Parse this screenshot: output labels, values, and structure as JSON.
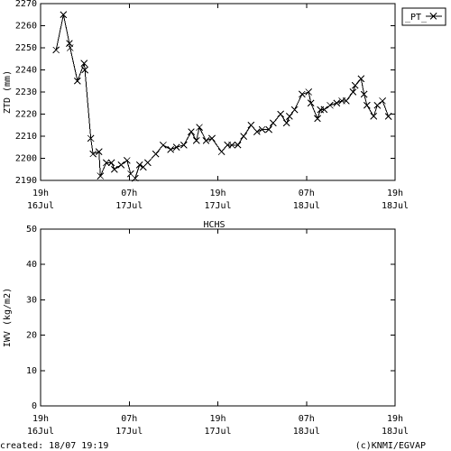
{
  "chart_data": [
    {
      "type": "line",
      "y_label": "ZTD (mm)",
      "x": [
        2.1,
        3.1,
        3.9,
        4.0,
        5.0,
        5.9,
        6.0,
        6.8,
        7.1,
        7.9,
        8.1,
        8.9,
        9.6,
        10.0,
        10.9,
        11.7,
        12.2,
        12.8,
        13.4,
        13.9,
        14.5,
        15.6,
        16.6,
        17.6,
        18.4,
        19.4,
        20.4,
        21.1,
        21.5,
        22.4,
        23.2,
        24.5,
        25.3,
        25.9,
        26.7,
        27.5,
        28.5,
        29.3,
        30.0,
        30.9,
        31.5,
        32.5,
        33.3,
        33.7,
        34.4,
        35.4,
        36.3,
        36.6,
        37.5,
        37.9,
        38.4,
        39.2,
        40.1,
        40.8,
        41.4,
        42.3,
        42.6,
        43.4,
        43.8,
        44.2,
        45.1,
        45.6,
        46.3,
        47.1
      ],
      "series": [
        {
          "name": "_PT_",
          "color": "#000000",
          "values": [
            2249,
            2265,
            2252,
            2250,
            2235,
            2243,
            2240,
            2209,
            2202,
            2203,
            2192,
            2198,
            2198,
            2195,
            2197,
            2199,
            2193,
            2191,
            2197,
            2196,
            2198,
            2202,
            2206,
            2204,
            2205,
            2206,
            2212,
            2208,
            2214,
            2208,
            2209,
            2203,
            2206,
            2206,
            2206,
            2210,
            2215,
            2212,
            2213,
            2213,
            2216,
            2220,
            2216,
            2219,
            2222,
            2229,
            2230,
            2225,
            2218,
            2222,
            2222,
            2224,
            2225,
            2226,
            2226,
            2230,
            2233,
            2236,
            2229,
            2224,
            2219,
            2224,
            2226,
            2219
          ]
        }
      ],
      "xlim": [
        0,
        48
      ],
      "xticks": [
        {
          "value": 0,
          "label": "19h"
        },
        {
          "value": 12,
          "label": "07h"
        },
        {
          "value": 24,
          "label": "19h"
        },
        {
          "value": 36,
          "label": "07h"
        },
        {
          "value": 48,
          "label": "19h"
        }
      ],
      "xtick_dates": [
        "16Jul",
        "17Jul",
        "17Jul",
        "18Jul",
        "18Jul"
      ],
      "ylim": [
        2190,
        2270
      ],
      "yticks": [
        2190,
        2200,
        2210,
        2220,
        2230,
        2240,
        2250,
        2260,
        2270
      ],
      "legend": "upper right"
    },
    {
      "type": "line",
      "title": "HCHS",
      "y_label": "IWV (kg/m2)",
      "x": [],
      "series": [],
      "xlim": [
        0,
        48
      ],
      "xticks": [
        {
          "value": 0,
          "label": "19h"
        },
        {
          "value": 12,
          "label": "07h"
        },
        {
          "value": 24,
          "label": "19h"
        },
        {
          "value": 36,
          "label": "07h"
        },
        {
          "value": 48,
          "label": "19h"
        }
      ],
      "xtick_dates": [
        "16Jul",
        "17Jul",
        "17Jul",
        "18Jul",
        "18Jul"
      ],
      "ylim": [
        0,
        50
      ],
      "yticks": [
        0,
        10,
        20,
        30,
        40,
        50
      ]
    }
  ],
  "footer": {
    "created": "created: 18/07 19:19",
    "credit": "(c)KNMI/EGVAP"
  }
}
